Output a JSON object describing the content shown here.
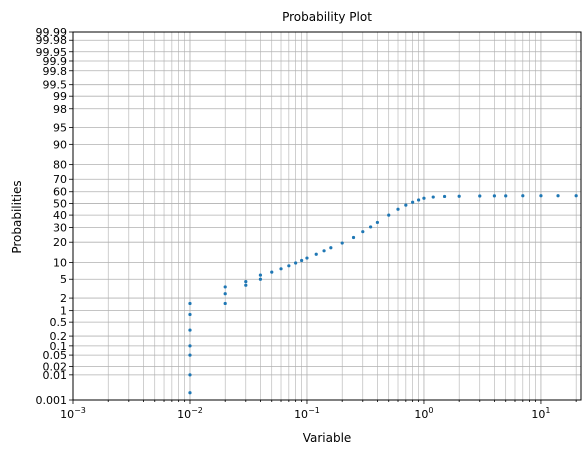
{
  "chart_data": {
    "type": "scatter",
    "title": "Probability Plot",
    "xlabel": "Variable",
    "ylabel": "Probabilities",
    "x_scale": "log",
    "y_scale": "probability",
    "xlim": [
      0.001,
      22
    ],
    "ylim": [
      0.001,
      99.99
    ],
    "grid": true,
    "x_ticks": [
      {
        "value": 0.001,
        "base": "10",
        "exp": "−3"
      },
      {
        "value": 0.01,
        "base": "10",
        "exp": "−2"
      },
      {
        "value": 0.1,
        "base": "10",
        "exp": "−1"
      },
      {
        "value": 1,
        "base": "10",
        "exp": "0"
      },
      {
        "value": 10,
        "base": "10",
        "exp": "1"
      }
    ],
    "y_ticks": [
      {
        "value": 0.001,
        "label": "0.001"
      },
      {
        "value": 0.01,
        "label": "0.01"
      },
      {
        "value": 0.02,
        "label": "0.02"
      },
      {
        "value": 0.05,
        "label": "0.05"
      },
      {
        "value": 0.1,
        "label": "0.1"
      },
      {
        "value": 0.2,
        "label": "0.2"
      },
      {
        "value": 0.5,
        "label": "0.5"
      },
      {
        "value": 1,
        "label": "1"
      },
      {
        "value": 2,
        "label": "2"
      },
      {
        "value": 5,
        "label": "5"
      },
      {
        "value": 10,
        "label": "10"
      },
      {
        "value": 20,
        "label": "20"
      },
      {
        "value": 30,
        "label": "30"
      },
      {
        "value": 40,
        "label": "40"
      },
      {
        "value": 50,
        "label": "50"
      },
      {
        "value": 60,
        "label": "60"
      },
      {
        "value": 70,
        "label": "70"
      },
      {
        "value": 80,
        "label": "80"
      },
      {
        "value": 90,
        "label": "90"
      },
      {
        "value": 95,
        "label": "95"
      },
      {
        "value": 98,
        "label": "98"
      },
      {
        "value": 99,
        "label": "99"
      },
      {
        "value": 99.5,
        "label": "99.5"
      },
      {
        "value": 99.8,
        "label": "99.8"
      },
      {
        "value": 99.9,
        "label": "99.9"
      },
      {
        "value": 99.95,
        "label": "99.95"
      },
      {
        "value": 99.98,
        "label": "99.98"
      },
      {
        "value": 99.99,
        "label": "99.99"
      }
    ],
    "marker_color": "#1f77b4",
    "x": [
      0.01,
      0.01,
      0.01,
      0.01,
      0.01,
      0.01,
      0.01,
      0.02,
      0.02,
      0.02,
      0.03,
      0.03,
      0.04,
      0.04,
      0.05,
      0.06,
      0.07,
      0.08,
      0.09,
      0.1,
      0.12,
      0.14,
      0.16,
      0.2,
      0.25,
      0.3,
      0.35,
      0.4,
      0.5,
      0.6,
      0.7,
      0.8,
      0.9,
      1.0,
      1.2,
      1.5,
      2.0,
      3.0,
      4.0,
      5.0,
      7.0,
      10.0,
      14.0,
      20.0
    ],
    "y": [
      0.002,
      0.01,
      0.05,
      0.1,
      0.3,
      0.8,
      1.5,
      1.5,
      2.5,
      3.5,
      3.8,
      4.5,
      5.0,
      6.0,
      6.8,
      7.8,
      8.8,
      9.8,
      10.8,
      11.8,
      13.5,
      15.2,
      16.8,
      19.5,
      23.0,
      27.0,
      30.5,
      34.0,
      40.0,
      45.0,
      48.5,
      51.0,
      53.0,
      54.5,
      55.5,
      56.0,
      56.2,
      56.4,
      56.5,
      56.5,
      56.6,
      56.6,
      56.6,
      56.6
    ]
  }
}
